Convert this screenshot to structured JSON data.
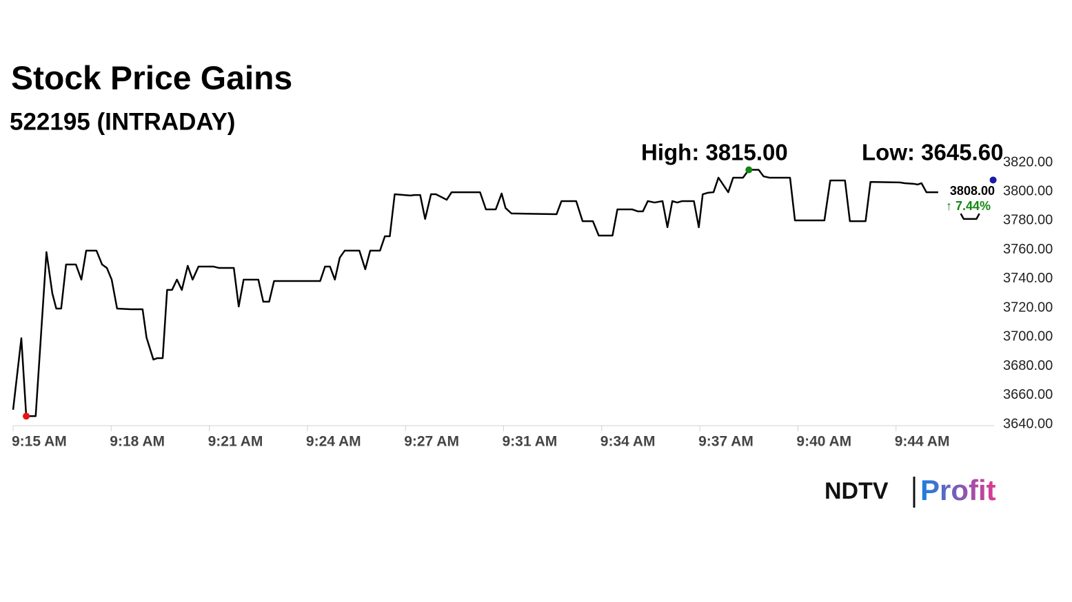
{
  "chart_data": {
    "type": "line",
    "title": "Stock Price Gains",
    "subtitle": "522195 (INTRADAY)",
    "x": [
      0,
      0.84,
      1.34,
      2.3,
      3.4,
      4.0,
      4.4,
      4.9,
      5.4,
      6.4,
      6.96,
      7.45,
      8.5,
      9.07,
      9.56,
      10.05,
      10.6,
      12.0,
      13.2,
      13.6,
      14.3,
      14.7,
      15.25,
      15.7,
      16.2,
      16.7,
      17.2,
      17.8,
      18.3,
      18.9,
      20.4,
      21.0,
      22.5,
      23.0,
      23.5,
      25.0,
      25.5,
      26.1,
      26.6,
      31.3,
      31.8,
      32.3,
      32.8,
      33.3,
      33.8,
      35.3,
      35.9,
      36.4,
      37.4,
      37.9,
      38.4,
      38.9,
      40.5,
      40.9,
      41.5,
      42.0,
      42.6,
      43.1,
      44.2,
      44.7,
      47.6,
      48.2,
      49.2,
      49.8,
      50.2,
      50.8,
      55.4,
      55.9,
      57.4,
      58.05,
      59.1,
      59.7,
      61.1,
      61.6,
      63.1,
      63.7,
      64.2,
      64.7,
      65.4,
      66.2,
      66.7,
      67.2,
      67.7,
      68.2,
      69.4,
      69.9,
      70.3,
      70.8,
      71.4,
      71.9,
      72.9,
      73.4,
      74.4,
      75.0,
      76.0,
      76.5,
      77.1,
      79.2,
      79.7,
      82.7,
      83.3,
      84.8,
      85.3,
      86.9,
      87.4,
      90.4,
      90.9,
      91.8,
      92.2,
      92.6,
      93.1,
      94.3,
      95.4,
      96.6,
      96.9,
      98.2,
      98.5
    ],
    "series": [
      {
        "name": "522195",
        "color": "#000000",
        "values": [
          3650,
          3699.2,
          3645.6,
          3645.6,
          3758.4,
          3730,
          3719.6,
          3719.6,
          3749.9,
          3749.9,
          3739.5,
          3759.4,
          3759.4,
          3749.9,
          3747.5,
          3739.5,
          3719.6,
          3719.1,
          3719.1,
          3699.7,
          3684.5,
          3685.5,
          3685.5,
          3732.4,
          3732.4,
          3739.5,
          3732.4,
          3749,
          3739.5,
          3748.5,
          3748.5,
          3747.5,
          3747.5,
          3721,
          3739.5,
          3739.5,
          3724.3,
          3724.3,
          3738.5,
          3738.5,
          3748.5,
          3748.5,
          3739.5,
          3754.6,
          3759.4,
          3759.4,
          3746.6,
          3759.4,
          3759.4,
          3769.3,
          3769.3,
          3798.2,
          3797.3,
          3797.7,
          3797.7,
          3781.2,
          3798.2,
          3798.2,
          3794.4,
          3799.6,
          3799.6,
          3787.8,
          3787.8,
          3798.7,
          3788.7,
          3785,
          3784.5,
          3793.5,
          3793.5,
          3779.7,
          3779.7,
          3769.8,
          3769.8,
          3787.8,
          3787.8,
          3786.4,
          3786.4,
          3793.5,
          3792.5,
          3793.5,
          3775.5,
          3793.5,
          3792.5,
          3793.5,
          3793.5,
          3775.5,
          3798.2,
          3799.2,
          3799.6,
          3809.6,
          3799.6,
          3809.6,
          3809.6,
          3815,
          3815,
          3810.5,
          3809.6,
          3809.6,
          3780.2,
          3780.2,
          3807.7,
          3807.7,
          3779.7,
          3779.7,
          3806.7,
          3806.3,
          3805.8,
          3805.4,
          3804.9,
          3805.8,
          3799.6,
          3799.6,
          null,
          3784.9,
          3781.2,
          3781.2,
          3784.9
        ]
      }
    ],
    "high": {
      "text": "High: 3815.00",
      "value": 3815,
      "x": 75.0
    },
    "low": {
      "text": "Low: 3645.60",
      "value": 3645.6,
      "x": 1.34
    },
    "last": {
      "text": "3808.00",
      "value": 3808,
      "x": 99.9,
      "change": "↑ 7.44%"
    },
    "xlim": [
      0,
      100
    ],
    "xticks": [
      {
        "value": 0,
        "label": "9:15 AM"
      },
      {
        "value": 10,
        "label": "9:18 AM"
      },
      {
        "value": 20,
        "label": "9:21 AM"
      },
      {
        "value": 30,
        "label": "9:24 AM"
      },
      {
        "value": 40,
        "label": "9:27 AM"
      },
      {
        "value": 50,
        "label": "9:31 AM"
      },
      {
        "value": 60,
        "label": "9:34 AM"
      },
      {
        "value": 70,
        "label": "9:37 AM"
      },
      {
        "value": 80,
        "label": "9:40 AM"
      },
      {
        "value": 90,
        "label": "9:44 AM"
      }
    ],
    "ylim": [
      3640,
      3820
    ],
    "yticks": [
      {
        "value": 3640,
        "label": "3640.00"
      },
      {
        "value": 3660,
        "label": "3660.00"
      },
      {
        "value": 3680,
        "label": "3680.00"
      },
      {
        "value": 3700,
        "label": "3700.00"
      },
      {
        "value": 3720,
        "label": "3720.00"
      },
      {
        "value": 3740,
        "label": "3740.00"
      },
      {
        "value": 3760,
        "label": "3760.00"
      },
      {
        "value": 3780,
        "label": "3780.00"
      },
      {
        "value": 3800,
        "label": "3800.00"
      },
      {
        "value": 3820,
        "label": "3820.00"
      }
    ],
    "grid": false
  },
  "logo": {
    "brand": "NDTV",
    "product": "Profit"
  }
}
